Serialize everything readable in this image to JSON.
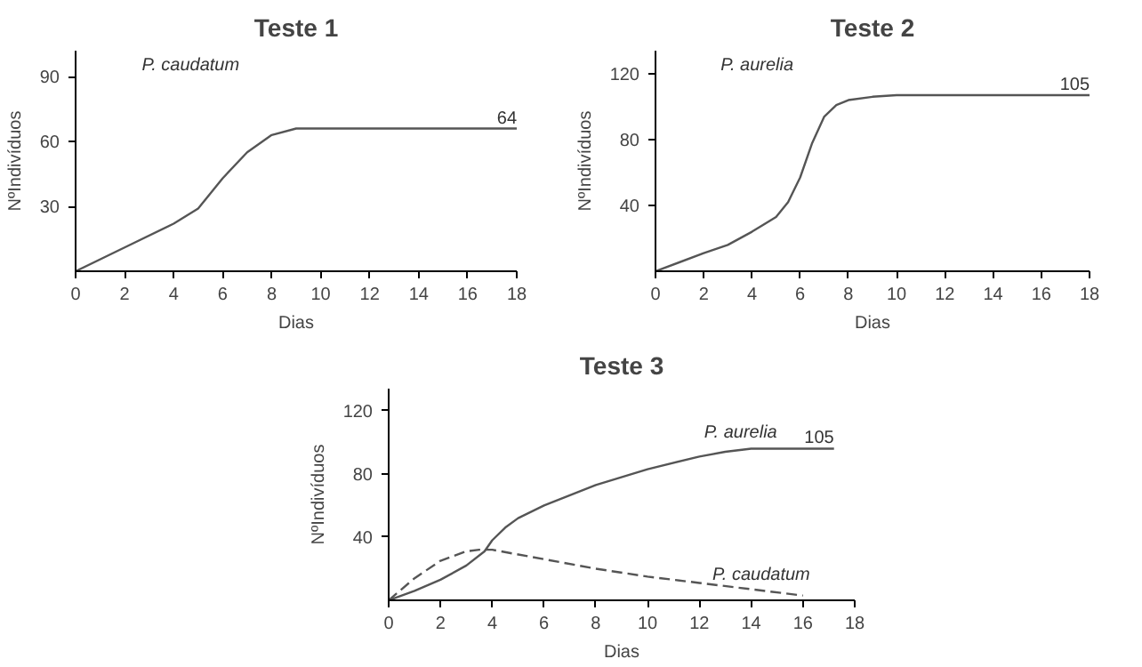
{
  "chart_data": [
    {
      "type": "line",
      "title": "Teste 1",
      "xlabel": "Dias",
      "ylabel": "NºIndivíduos",
      "xlim": [
        0,
        18
      ],
      "ylim": [
        0,
        102
      ],
      "xticks": [
        0,
        2,
        4,
        6,
        8,
        10,
        12,
        14,
        16,
        18
      ],
      "yticks": [
        30,
        60,
        90
      ],
      "grid": false,
      "legend": false,
      "annotations": [
        "64"
      ],
      "series": [
        {
          "name": "P. caudatum",
          "color": "#555555",
          "line_style": "solid",
          "x": [
            0,
            2,
            4,
            5,
            6,
            7,
            8,
            9,
            10,
            18
          ],
          "values": [
            0,
            11,
            22,
            29,
            43,
            55,
            63,
            66,
            66,
            66
          ]
        }
      ]
    },
    {
      "type": "line",
      "title": "Teste 2",
      "xlabel": "Dias",
      "ylabel": "NºIndivíduos",
      "xlim": [
        0,
        18
      ],
      "ylim": [
        0,
        134
      ],
      "xticks": [
        0,
        2,
        4,
        6,
        8,
        10,
        12,
        14,
        16,
        18
      ],
      "yticks": [
        40,
        80,
        120
      ],
      "grid": false,
      "legend": false,
      "annotations": [
        "105"
      ],
      "series": [
        {
          "name": "P. aurelia",
          "color": "#555555",
          "line_style": "solid",
          "x": [
            0,
            2,
            3,
            4,
            5,
            5.5,
            6,
            6.5,
            7,
            7.5,
            8,
            9,
            10,
            12,
            18
          ],
          "values": [
            0,
            11,
            16,
            24,
            33,
            42,
            57,
            78,
            94,
            101,
            104,
            106,
            107,
            107,
            107
          ]
        }
      ]
    },
    {
      "type": "line",
      "title": "Teste 3",
      "xlabel": "Dias",
      "ylabel": "NºIndivíduos",
      "xlim": [
        0,
        18
      ],
      "ylim": [
        0,
        134
      ],
      "xticks": [
        0,
        2,
        4,
        6,
        8,
        10,
        12,
        14,
        16,
        18
      ],
      "yticks": [
        40,
        80,
        120
      ],
      "grid": false,
      "legend": false,
      "annotations": [
        "105"
      ],
      "series": [
        {
          "name": "P. aurelia",
          "color": "#555555",
          "line_style": "solid",
          "x": [
            0,
            1,
            2,
            3,
            3.7,
            4,
            4.5,
            5,
            6,
            8,
            10,
            12,
            13,
            14,
            15,
            17.2
          ],
          "values": [
            0,
            6,
            13,
            22,
            31,
            38,
            46,
            52,
            60,
            73,
            83,
            91,
            94,
            96,
            96,
            96
          ]
        },
        {
          "name": "P. caudatum",
          "color": "#555555",
          "line_style": "dashed",
          "x": [
            0,
            1,
            2,
            3,
            3.5,
            4,
            6,
            8,
            10,
            12,
            14,
            16
          ],
          "values": [
            0,
            14,
            25,
            31,
            32,
            32,
            26,
            20,
            15,
            11,
            7,
            3
          ]
        }
      ]
    }
  ]
}
